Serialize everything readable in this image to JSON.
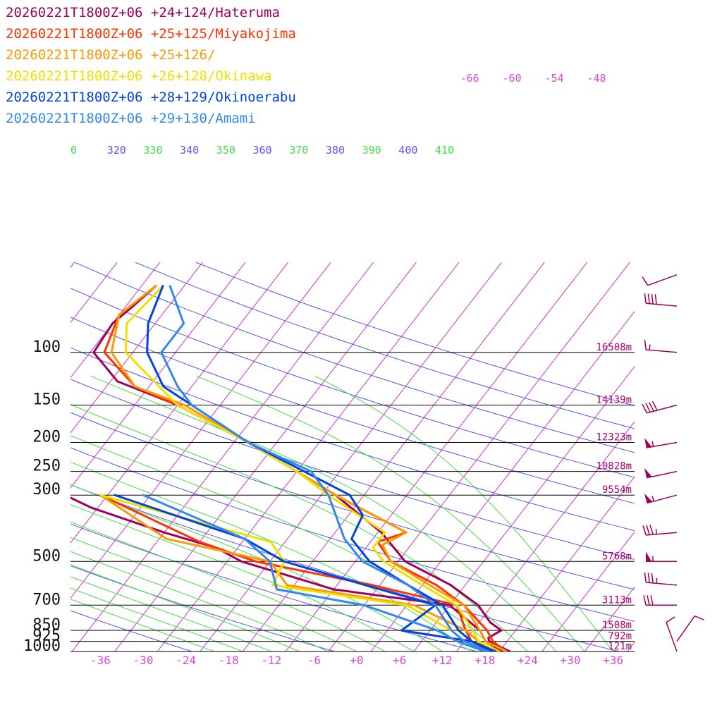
{
  "colors": {
    "background": "#ffffff",
    "isobar": "#000000",
    "isotherm": "#cc33cc",
    "dry_adiabat": "#5555ee",
    "moist_adiabat": "#44dd44",
    "height_label": "#b0006c",
    "temp_tick": "#d24bd2",
    "wind_barb": "#a0005a"
  },
  "chart_data": {
    "type": "line",
    "subtype": "skew-T log-p sounding",
    "title": "",
    "xlabel": "",
    "ylabel": "",
    "y_scale": "log",
    "ylim": [
      1000,
      55
    ],
    "xlim": [
      -40,
      40
    ],
    "pressure_levels": [
      100,
      150,
      200,
      250,
      300,
      500,
      700,
      850,
      925,
      1000
    ],
    "pressure_labels": [
      "100",
      "150",
      "200",
      "250",
      "300",
      "500",
      "700",
      "850",
      "925",
      "1000"
    ],
    "height_labels": [
      {
        "p": 100,
        "text": "16508m"
      },
      {
        "p": 150,
        "text": "14139m"
      },
      {
        "p": 200,
        "text": "12323m"
      },
      {
        "p": 250,
        "text": "10828m"
      },
      {
        "p": 300,
        "text": "9554m"
      },
      {
        "p": 500,
        "text": "5768m"
      },
      {
        "p": 700,
        "text": "3113m"
      },
      {
        "p": 850,
        "text": "1508m"
      },
      {
        "p": 925,
        "text": "792m"
      },
      {
        "p": 1000,
        "text": "121m"
      }
    ],
    "temperature_ticks": [
      -36,
      -30,
      -24,
      -18,
      -12,
      -6,
      0,
      6,
      12,
      18,
      24,
      30,
      36
    ],
    "temperature_tick_labels": [
      "-36",
      "-30",
      "-24",
      "-18",
      "-12",
      "-6",
      "+0",
      "+6",
      "+12",
      "+18",
      "+24",
      "+30",
      "+36"
    ],
    "mixing_ratio_labels": [
      "-66",
      "-60",
      "-54",
      "-48"
    ],
    "theta_labels": [
      {
        "text": "0",
        "color": "#44dd44"
      },
      {
        "text": "320",
        "color": "#5555ee"
      },
      {
        "text": "330",
        "color": "#44dd44"
      },
      {
        "text": "340",
        "color": "#5555ee"
      },
      {
        "text": "350",
        "color": "#44dd44"
      },
      {
        "text": "360",
        "color": "#5555ee"
      },
      {
        "text": "370",
        "color": "#44dd44"
      },
      {
        "text": "380",
        "color": "#5555ee"
      },
      {
        "text": "390",
        "color": "#44dd44"
      },
      {
        "text": "400",
        "color": "#5555ee"
      },
      {
        "text": "410",
        "color": "#44dd44"
      }
    ],
    "series": [
      {
        "name": "20260221T1800Z+06 +24+124/Hateruma",
        "color": "#a0005a",
        "temperature": [
          [
            1000,
            21.5
          ],
          [
            925,
            17.5
          ],
          [
            900,
            17
          ],
          [
            850,
            18
          ],
          [
            800,
            15.6
          ],
          [
            700,
            12
          ],
          [
            600,
            6
          ],
          [
            500,
            -3
          ],
          [
            400,
            -9.5
          ],
          [
            300,
            -20
          ],
          [
            250,
            -28
          ],
          [
            200,
            -38
          ],
          [
            150,
            -52
          ],
          [
            125,
            -63
          ],
          [
            100,
            -69.5
          ],
          [
            80,
            -70
          ],
          [
            70,
            -69
          ],
          [
            60,
            -68
          ]
        ],
        "dewpoint": [
          [
            1000,
            20.5
          ],
          [
            925,
            17
          ],
          [
            850,
            15
          ],
          [
            700,
            8
          ],
          [
            620,
            -10
          ],
          [
            500,
            -26
          ],
          [
            450,
            -31
          ],
          [
            400,
            -40
          ],
          [
            330,
            -53
          ],
          [
            300,
            -58
          ]
        ]
      },
      {
        "name": "20260221T1800Z+06 +25+125/Miyakojima",
        "color": "#ff3300",
        "temperature": [
          [
            1000,
            21
          ],
          [
            925,
            18
          ],
          [
            850,
            16
          ],
          [
            700,
            10
          ],
          [
            600,
            4
          ],
          [
            500,
            -5
          ],
          [
            430,
            -9
          ],
          [
            400,
            -6
          ],
          [
            300,
            -20
          ],
          [
            250,
            -28
          ],
          [
            200,
            -38
          ],
          [
            150,
            -52
          ],
          [
            130,
            -60
          ],
          [
            100,
            -68
          ],
          [
            75,
            -70
          ],
          [
            60,
            -68
          ]
        ],
        "dewpoint": [
          [
            1000,
            20
          ],
          [
            925,
            15
          ],
          [
            850,
            13
          ],
          [
            700,
            9
          ],
          [
            600,
            -5
          ],
          [
            500,
            -24
          ],
          [
            430,
            -34
          ],
          [
            300,
            -53
          ]
        ]
      },
      {
        "name": "20260221T1800Z+06 +25+126/",
        "color": "#ff9900",
        "temperature": [
          [
            1000,
            21
          ],
          [
            925,
            17
          ],
          [
            850,
            15
          ],
          [
            700,
            10
          ],
          [
            600,
            3
          ],
          [
            500,
            -5
          ],
          [
            440,
            -8
          ],
          [
            400,
            -6
          ],
          [
            300,
            -20
          ],
          [
            250,
            -28
          ],
          [
            200,
            -38
          ],
          [
            150,
            -51
          ],
          [
            130,
            -60
          ],
          [
            100,
            -67
          ],
          [
            75,
            -70
          ],
          [
            60,
            -68
          ]
        ],
        "dewpoint": [
          [
            1000,
            20
          ],
          [
            925,
            16
          ],
          [
            850,
            13
          ],
          [
            700,
            3
          ],
          [
            600,
            -17
          ],
          [
            500,
            -22
          ],
          [
            420,
            -39
          ],
          [
            300,
            -53
          ]
        ]
      },
      {
        "name": "20260221T1800Z+06 +26+128/Okinawa",
        "color": "#f0e000",
        "temperature": [
          [
            1000,
            20
          ],
          [
            925,
            16
          ],
          [
            850,
            14
          ],
          [
            700,
            9
          ],
          [
            600,
            2
          ],
          [
            500,
            -6
          ],
          [
            450,
            -9
          ],
          [
            400,
            -9
          ],
          [
            300,
            -21
          ],
          [
            250,
            -28
          ],
          [
            200,
            -38
          ],
          [
            150,
            -52
          ],
          [
            100,
            -65
          ],
          [
            80,
            -68
          ],
          [
            60,
            -67
          ]
        ],
        "dewpoint": [
          [
            1000,
            19
          ],
          [
            925,
            14
          ],
          [
            850,
            11
          ],
          [
            700,
            2
          ],
          [
            600,
            -19
          ],
          [
            500,
            -20
          ],
          [
            430,
            -24
          ],
          [
            300,
            -53
          ]
        ]
      },
      {
        "name": "20260221T1800Z+06 +28+129/Okinoerabu",
        "color": "#0044dd",
        "temperature": [
          [
            1000,
            19.5
          ],
          [
            925,
            15
          ],
          [
            850,
            12
          ],
          [
            700,
            7
          ],
          [
            600,
            0
          ],
          [
            500,
            -8
          ],
          [
            420,
            -13
          ],
          [
            350,
            -14
          ],
          [
            300,
            -18
          ],
          [
            250,
            -27
          ],
          [
            200,
            -38
          ],
          [
            150,
            -50
          ],
          [
            130,
            -56
          ],
          [
            100,
            -62
          ],
          [
            80,
            -65
          ],
          [
            60,
            -67
          ]
        ],
        "dewpoint": [
          [
            1000,
            19
          ],
          [
            925,
            15
          ],
          [
            850,
            4
          ],
          [
            700,
            6
          ],
          [
            600,
            -6
          ],
          [
            500,
            -20
          ],
          [
            420,
            -28
          ],
          [
            300,
            -51
          ]
        ]
      },
      {
        "name": "20260221T1800Z+06 +29+130/Amami",
        "color": "#3388ee",
        "temperature": [
          [
            1000,
            18.5
          ],
          [
            925,
            14
          ],
          [
            850,
            11
          ],
          [
            700,
            6
          ],
          [
            600,
            0
          ],
          [
            500,
            -9
          ],
          [
            420,
            -14
          ],
          [
            300,
            -21
          ],
          [
            250,
            -26
          ],
          [
            200,
            -38
          ],
          [
            150,
            -50
          ],
          [
            130,
            -54
          ],
          [
            100,
            -60
          ],
          [
            80,
            -60
          ],
          [
            60,
            -66
          ]
        ],
        "dewpoint": [
          [
            1000,
            18
          ],
          [
            925,
            13
          ],
          [
            850,
            9
          ],
          [
            700,
            -4
          ],
          [
            620,
            -18
          ],
          [
            500,
            -22
          ],
          [
            420,
            -28
          ],
          [
            300,
            -47
          ]
        ]
      }
    ],
    "wind_barbs": [
      {
        "p": 1000,
        "speed_kt": 10,
        "dir": 340
      },
      {
        "p": 925,
        "speed_kt": 10,
        "dir": 35
      },
      {
        "p": 700,
        "speed_kt": 30,
        "dir": 270
      },
      {
        "p": 600,
        "speed_kt": 35,
        "dir": 275
      },
      {
        "p": 500,
        "speed_kt": 55,
        "dir": 270
      },
      {
        "p": 400,
        "speed_kt": 35,
        "dir": 265
      },
      {
        "p": 300,
        "speed_kt": 55,
        "dir": 255
      },
      {
        "p": 250,
        "speed_kt": 50,
        "dir": 258
      },
      {
        "p": 200,
        "speed_kt": 55,
        "dir": 260
      },
      {
        "p": 150,
        "speed_kt": 40,
        "dir": 255
      },
      {
        "p": 100,
        "speed_kt": 15,
        "dir": 275
      },
      {
        "p": 70,
        "speed_kt": 40,
        "dir": 275
      },
      {
        "p": 55,
        "speed_kt": 10,
        "dir": 250
      }
    ]
  }
}
